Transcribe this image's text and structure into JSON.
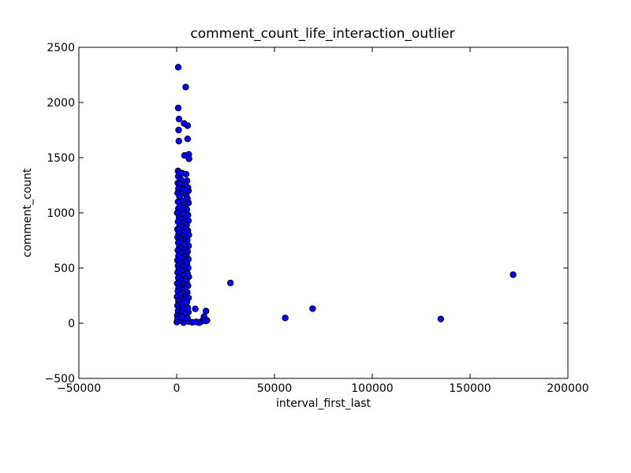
{
  "chart_data": {
    "type": "scatter",
    "title": "comment_count_life_interaction_outlier",
    "xlabel": "interval_first_last",
    "ylabel": "comment_count",
    "xlim": [
      -50000,
      200000
    ],
    "ylim": [
      -500,
      2500
    ],
    "x_ticks": [
      -50000,
      0,
      50000,
      100000,
      150000,
      200000
    ],
    "x_tick_labels": [
      "−50000",
      "0",
      "50000",
      "100000",
      "150000",
      "200000"
    ],
    "y_ticks": [
      -500,
      0,
      500,
      1000,
      1500,
      2000,
      2500
    ],
    "y_tick_labels": [
      "−500",
      "0",
      "500",
      "1000",
      "1500",
      "2000",
      "2500"
    ],
    "grid": false,
    "marker_color": "#0000ff",
    "marker_edge_color": "#000000",
    "series": [
      {
        "points": [
          [
            800,
            2320
          ],
          [
            4600,
            2140
          ],
          [
            800,
            1950
          ],
          [
            1200,
            1850
          ],
          [
            3800,
            1810
          ],
          [
            5600,
            1790
          ],
          [
            1000,
            1750
          ],
          [
            5600,
            1670
          ],
          [
            1100,
            1650
          ],
          [
            4000,
            1520
          ],
          [
            6200,
            1530
          ],
          [
            6300,
            1490
          ],
          [
            700,
            1380
          ],
          [
            1200,
            1360
          ],
          [
            2800,
            1360
          ],
          [
            4800,
            1350
          ],
          [
            800,
            1330
          ],
          [
            2300,
            1300
          ],
          [
            5300,
            1290
          ],
          [
            600,
            1270
          ],
          [
            1600,
            1260
          ],
          [
            4200,
            1250
          ],
          [
            5800,
            1230
          ],
          [
            900,
            1220
          ],
          [
            3500,
            1210
          ],
          [
            6000,
            1200
          ],
          [
            500,
            1180
          ],
          [
            2100,
            1170
          ],
          [
            4900,
            1160
          ],
          [
            1400,
            1150
          ],
          [
            5500,
            1130
          ],
          [
            2900,
            1110
          ],
          [
            700,
            1100
          ],
          [
            6100,
            1090
          ],
          [
            3900,
            1070
          ],
          [
            1800,
            1060
          ],
          [
            4500,
            1050
          ],
          [
            900,
            1040
          ],
          [
            5200,
            1030
          ],
          [
            2600,
            1020
          ],
          [
            300,
            1000
          ],
          [
            3300,
            990
          ],
          [
            5800,
            980
          ],
          [
            1200,
            960
          ],
          [
            4100,
            950
          ],
          [
            2000,
            940
          ],
          [
            6000,
            930
          ],
          [
            700,
            920
          ],
          [
            3600,
            910
          ],
          [
            5100,
            890
          ],
          [
            1500,
            880
          ],
          [
            2800,
            870
          ],
          [
            4600,
            860
          ],
          [
            400,
            850
          ],
          [
            5700,
            840
          ],
          [
            2300,
            830
          ],
          [
            3900,
            820
          ],
          [
            1000,
            810
          ],
          [
            6200,
            800
          ],
          [
            3100,
            790
          ],
          [
            500,
            780
          ],
          [
            4800,
            770
          ],
          [
            1700,
            760
          ],
          [
            5400,
            750
          ],
          [
            2500,
            740
          ],
          [
            800,
            730
          ],
          [
            4200,
            720
          ],
          [
            3400,
            710
          ],
          [
            6100,
            700
          ],
          [
            1300,
            690
          ],
          [
            2100,
            680
          ],
          [
            4700,
            670
          ],
          [
            600,
            660
          ],
          [
            5600,
            650
          ],
          [
            3200,
            640
          ],
          [
            1900,
            630
          ],
          [
            5000,
            620
          ],
          [
            900,
            610
          ],
          [
            3800,
            600
          ],
          [
            2700,
            590
          ],
          [
            6000,
            580
          ],
          [
            400,
            570
          ],
          [
            4400,
            560
          ],
          [
            1600,
            550
          ],
          [
            5300,
            540
          ],
          [
            2200,
            530
          ],
          [
            700,
            520
          ],
          [
            3600,
            510
          ],
          [
            5900,
            500
          ],
          [
            1100,
            490
          ],
          [
            4100,
            480
          ],
          [
            2900,
            470
          ],
          [
            500,
            460
          ],
          [
            5500,
            450
          ],
          [
            1800,
            440
          ],
          [
            3300,
            430
          ],
          [
            6200,
            420
          ],
          [
            800,
            410
          ],
          [
            4600,
            400
          ],
          [
            2400,
            390
          ],
          [
            5100,
            380
          ],
          [
            1400,
            370
          ],
          [
            300,
            360
          ],
          [
            3700,
            350
          ],
          [
            5800,
            340
          ],
          [
            2000,
            330
          ],
          [
            1000,
            320
          ],
          [
            4300,
            310
          ],
          [
            2600,
            300
          ],
          [
            600,
            290
          ],
          [
            5400,
            280
          ],
          [
            3100,
            270
          ],
          [
            1700,
            260
          ],
          [
            4900,
            250
          ],
          [
            200,
            240
          ],
          [
            6100,
            230
          ],
          [
            2300,
            220
          ],
          [
            3900,
            210
          ],
          [
            900,
            200
          ],
          [
            5200,
            190
          ],
          [
            1500,
            180
          ],
          [
            2800,
            170
          ],
          [
            400,
            160
          ],
          [
            4500,
            150
          ],
          [
            5700,
            140
          ],
          [
            1200,
            130
          ],
          [
            3400,
            120
          ],
          [
            700,
            110
          ],
          [
            6000,
            100
          ],
          [
            2100,
            90
          ],
          [
            4000,
            80
          ],
          [
            300,
            70
          ],
          [
            1600,
            60
          ],
          [
            5300,
            50
          ],
          [
            2700,
            40
          ],
          [
            800,
            30
          ],
          [
            4700,
            20
          ],
          [
            100,
            10
          ],
          [
            3500,
            5
          ],
          [
            6200,
            15
          ],
          [
            1900,
            25
          ],
          [
            500,
            35
          ],
          [
            5600,
            45
          ],
          [
            2500,
            55
          ],
          [
            9500,
            130
          ],
          [
            15000,
            110
          ],
          [
            12000,
            10
          ],
          [
            14000,
            60
          ],
          [
            15500,
            25
          ],
          [
            13500,
            30
          ],
          [
            8000,
            8
          ],
          [
            10000,
            12
          ],
          [
            11500,
            5
          ],
          [
            14500,
            20
          ],
          [
            27500,
            365
          ],
          [
            55500,
            48
          ],
          [
            69500,
            132
          ],
          [
            135000,
            38
          ],
          [
            172000,
            440
          ]
        ]
      }
    ]
  }
}
